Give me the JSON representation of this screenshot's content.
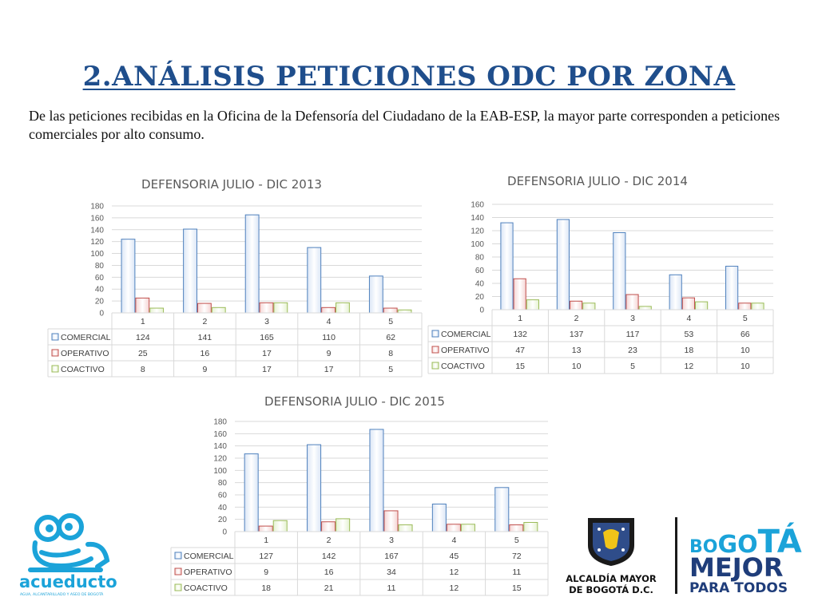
{
  "slide": {
    "title": "2.ANÁLISIS PETICIONES ODC POR ZONA",
    "intro": "De las peticiones recibidas en la Oficina de la Defensoría del Ciudadano de la EAB-ESP, la mayor parte corresponden a peticiones comerciales por alto consumo."
  },
  "colors": {
    "comercial": "#4f81bd",
    "operativo": "#c0504d",
    "coactivo": "#9bbb59",
    "title": "#1f4e8c"
  },
  "chart_data": [
    {
      "type": "bar",
      "title": "DEFENSORIA JULIO - DIC 2013",
      "categories": [
        "1",
        "2",
        "3",
        "4",
        "5"
      ],
      "ylim": [
        0,
        180
      ],
      "yticks": [
        0,
        20,
        40,
        60,
        80,
        100,
        120,
        140,
        160,
        180
      ],
      "grid": true,
      "legend": "data-table",
      "series": [
        {
          "name": "COMERCIAL",
          "values": [
            124,
            141,
            165,
            110,
            62
          ]
        },
        {
          "name": "OPERATIVO",
          "values": [
            25,
            16,
            17,
            9,
            8
          ]
        },
        {
          "name": "COACTIVO",
          "values": [
            8,
            9,
            17,
            17,
            5
          ]
        }
      ]
    },
    {
      "type": "bar",
      "title": "DEFENSORIA JULIO - DIC 2014",
      "categories": [
        "1",
        "2",
        "3",
        "4",
        "5"
      ],
      "ylim": [
        0,
        160
      ],
      "yticks": [
        0,
        20,
        40,
        60,
        80,
        100,
        120,
        140,
        160
      ],
      "grid": true,
      "legend": "data-table",
      "series": [
        {
          "name": "COMERCIAL",
          "values": [
            132,
            137,
            117,
            53,
            66
          ]
        },
        {
          "name": "OPERATIVO",
          "values": [
            47,
            13,
            23,
            18,
            10
          ]
        },
        {
          "name": "COACTIVO",
          "values": [
            15,
            10,
            5,
            12,
            10
          ]
        }
      ]
    },
    {
      "type": "bar",
      "title": "DEFENSORIA JULIO - DIC 2015",
      "categories": [
        "1",
        "2",
        "3",
        "4",
        "5"
      ],
      "ylim": [
        0,
        180
      ],
      "yticks": [
        0,
        20,
        40,
        60,
        80,
        100,
        120,
        140,
        160,
        180
      ],
      "grid": true,
      "legend": "data-table",
      "series": [
        {
          "name": "COMERCIAL",
          "values": [
            127,
            142,
            167,
            45,
            72
          ]
        },
        {
          "name": "OPERATIVO",
          "values": [
            9,
            16,
            34,
            12,
            11
          ]
        },
        {
          "name": "COACTIVO",
          "values": [
            18,
            21,
            11,
            12,
            15
          ]
        }
      ]
    }
  ],
  "logos": {
    "acueducto": {
      "name": "acueducto",
      "tagline": "AGUA, ALCANTARILLADO Y ASEO DE BOGOTÁ",
      "icon": "frog-icon"
    },
    "alcaldia": {
      "line1": "ALCALDÍA MAYOR",
      "line2": "DE BOGOTÁ D.C.",
      "icon": "coat-of-arms-icon"
    },
    "bogota": {
      "line1a": "BO",
      "line1b": "GO",
      "line1c": "TÁ",
      "line2": "MEJOR",
      "line3": "PARA TODOS"
    }
  }
}
